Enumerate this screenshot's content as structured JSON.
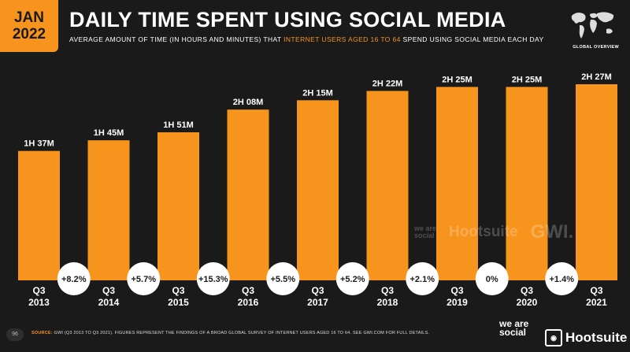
{
  "header": {
    "date_month": "JAN",
    "date_year": "2022",
    "title": "DAILY TIME SPENT USING SOCIAL MEDIA",
    "subtitle_pre": "AVERAGE AMOUNT OF TIME (IN HOURS AND MINUTES) THAT ",
    "subtitle_highlight": "INTERNET USERS AGED 16 TO 64",
    "subtitle_post": " SPEND USING SOCIAL MEDIA EACH DAY",
    "map_label": "GLOBAL OVERVIEW",
    "map_icon": "world-map-icon"
  },
  "watermark": {
    "we_are_social": "we are social",
    "hootsuite": "Hootsuite",
    "gwi": "GWI."
  },
  "footer": {
    "page_number": "96",
    "source_label": "SOURCE:",
    "source_text": "GWI (Q3 2013 TO Q3 2021). FIGURES REPRESENT THE FINDINGS OF A BROAD GLOBAL SURVEY OF INTERNET USERS AGED 16 TO 64. SEE GWI.COM FOR FULL DETAILS.",
    "brand_we_are_social": "we are social",
    "brand_hootsuite": "Hootsuite"
  },
  "colors": {
    "background": "#1a1a1a",
    "bar": "#f7941d",
    "accent": "#f7941d",
    "text": "#ffffff",
    "bubble": "#ffffff",
    "bubble_text": "#1a1a1a"
  },
  "chart_data": {
    "type": "bar",
    "title": "DAILY TIME SPENT USING SOCIAL MEDIA",
    "categories": [
      {
        "quarter": "Q3",
        "year": "2013"
      },
      {
        "quarter": "Q3",
        "year": "2014"
      },
      {
        "quarter": "Q3",
        "year": "2015"
      },
      {
        "quarter": "Q3",
        "year": "2016"
      },
      {
        "quarter": "Q3",
        "year": "2017"
      },
      {
        "quarter": "Q3",
        "year": "2018"
      },
      {
        "quarter": "Q3",
        "year": "2019"
      },
      {
        "quarter": "Q3",
        "year": "2020"
      },
      {
        "quarter": "Q3",
        "year": "2021"
      }
    ],
    "values_minutes": [
      97,
      105,
      111,
      128,
      135,
      142,
      145,
      145,
      147
    ],
    "value_labels": [
      "1H 37M",
      "1H 45M",
      "1H 51M",
      "2H 08M",
      "2H 15M",
      "2H 22M",
      "2H 25M",
      "2H 25M",
      "2H 27M"
    ],
    "changes": [
      "+8.2%",
      "+5.7%",
      "+15.3%",
      "+5.5%",
      "+5.2%",
      "+2.1%",
      "0%",
      "+1.4%"
    ],
    "ylim": [
      0,
      147
    ],
    "grid": false,
    "legend": "none"
  }
}
